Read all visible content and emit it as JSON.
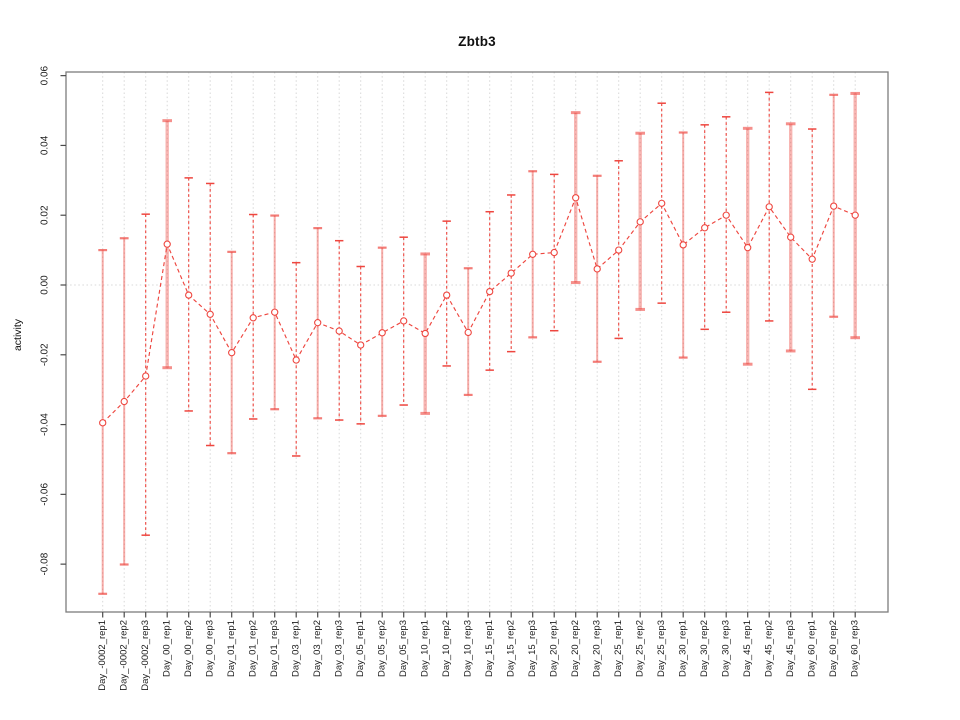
{
  "chart_data": {
    "type": "line",
    "title": "Zbtb3",
    "xlabel": "",
    "ylabel": "activity",
    "legend_position": "none",
    "grid": {
      "vertical_dotted_per_category": true,
      "horizontal_dotted_at_zero": true
    },
    "ylim": [
      -0.0937,
      0.0611
    ],
    "y_ticks": [
      0.06,
      0.04,
      0.02,
      0.0,
      -0.02,
      -0.04,
      -0.06,
      -0.08
    ],
    "y_tick_labels": [
      "0.06",
      "0.04",
      "0.02",
      "0.00",
      "-0.02",
      "-0.04",
      "-0.06",
      "-0.08"
    ],
    "categories": [
      "Day_-0002_rep1",
      "Day_-0002_rep2",
      "Day_-0002_rep3",
      "Day_00_rep1",
      "Day_00_rep2",
      "Day_00_rep3",
      "Day_01_rep1",
      "Day_01_rep2",
      "Day_01_rep3",
      "Day_03_rep1",
      "Day_03_rep2",
      "Day_03_rep3",
      "Day_05_rep1",
      "Day_05_rep2",
      "Day_05_rep3",
      "Day_10_rep1",
      "Day_10_rep2",
      "Day_10_rep3",
      "Day_15_rep1",
      "Day_15_rep2",
      "Day_15_rep3",
      "Day_20_rep1",
      "Day_20_rep2",
      "Day_20_rep3",
      "Day_25_rep1",
      "Day_25_rep2",
      "Day_25_rep3",
      "Day_30_rep1",
      "Day_30_rep2",
      "Day_30_rep3",
      "Day_45_rep1",
      "Day_45_rep2",
      "Day_45_rep3",
      "Day_60_rep1",
      "Day_60_rep2",
      "Day_60_rep3"
    ],
    "series": [
      {
        "name": "activity",
        "marker": "open-circle",
        "line_style": "dashed",
        "values": [
          -0.0395,
          -0.0334,
          -0.0261,
          0.0117,
          -0.0029,
          -0.0084,
          -0.0194,
          -0.0094,
          -0.0078,
          -0.0215,
          -0.0108,
          -0.0132,
          -0.0172,
          -0.0137,
          -0.0103,
          -0.0139,
          -0.0029,
          -0.0136,
          -0.0019,
          0.0034,
          0.0088,
          0.0093,
          0.025,
          0.0046,
          0.01,
          0.0181,
          0.0234,
          0.0115,
          0.0164,
          0.02,
          0.0107,
          0.0224,
          0.0137,
          0.0074,
          0.0226,
          0.02
        ],
        "upper": [
          0.01,
          0.0134,
          0.0203,
          0.0471,
          0.0307,
          0.0291,
          0.0095,
          0.0202,
          0.0199,
          0.0064,
          0.0163,
          0.0127,
          0.0053,
          0.0107,
          0.0137,
          0.0089,
          0.0183,
          0.0048,
          0.021,
          0.0258,
          0.0326,
          0.0317,
          0.0494,
          0.0313,
          0.0356,
          0.0435,
          0.0521,
          0.0437,
          0.0459,
          0.0482,
          0.0449,
          0.0552,
          0.0462,
          0.0447,
          0.0545,
          0.0549
        ],
        "lower": [
          -0.0885,
          -0.0801,
          -0.0717,
          -0.0237,
          -0.0361,
          -0.046,
          -0.0482,
          -0.0384,
          -0.0356,
          -0.049,
          -0.0382,
          -0.0387,
          -0.0398,
          -0.0375,
          -0.0344,
          -0.0368,
          -0.0232,
          -0.0315,
          -0.0244,
          -0.0191,
          -0.015,
          -0.0131,
          0.0007,
          -0.022,
          -0.0153,
          -0.007,
          -0.0052,
          -0.0208,
          -0.0127,
          -0.0078,
          -0.0227,
          -0.0103,
          -0.0189,
          -0.0299,
          -0.0091,
          -0.0151
        ]
      }
    ],
    "error_bar_styles": [
      "solid",
      "solid",
      "dashed",
      "thick",
      "dashed",
      "dashed",
      "solid",
      "dashed",
      "solid",
      "dashed",
      "solid",
      "dashed",
      "dashed",
      "solid",
      "dashed",
      "thick",
      "dashed",
      "solid",
      "dashed",
      "dashed",
      "solid",
      "dashed",
      "thick",
      "solid",
      "dashed",
      "thick",
      "dashed",
      "solid",
      "dashed",
      "dashed",
      "thick",
      "dashed",
      "thick",
      "dashed",
      "solid",
      "thick"
    ],
    "colors": {
      "line": "#ee463f",
      "marker": "#ee463f",
      "error_bar_pale": "#f5a09b",
      "grid": "#d8d8d8",
      "axis_box": "#7d7d7d",
      "tick": "#4a4a4a",
      "text": "#1c1c1c"
    }
  }
}
